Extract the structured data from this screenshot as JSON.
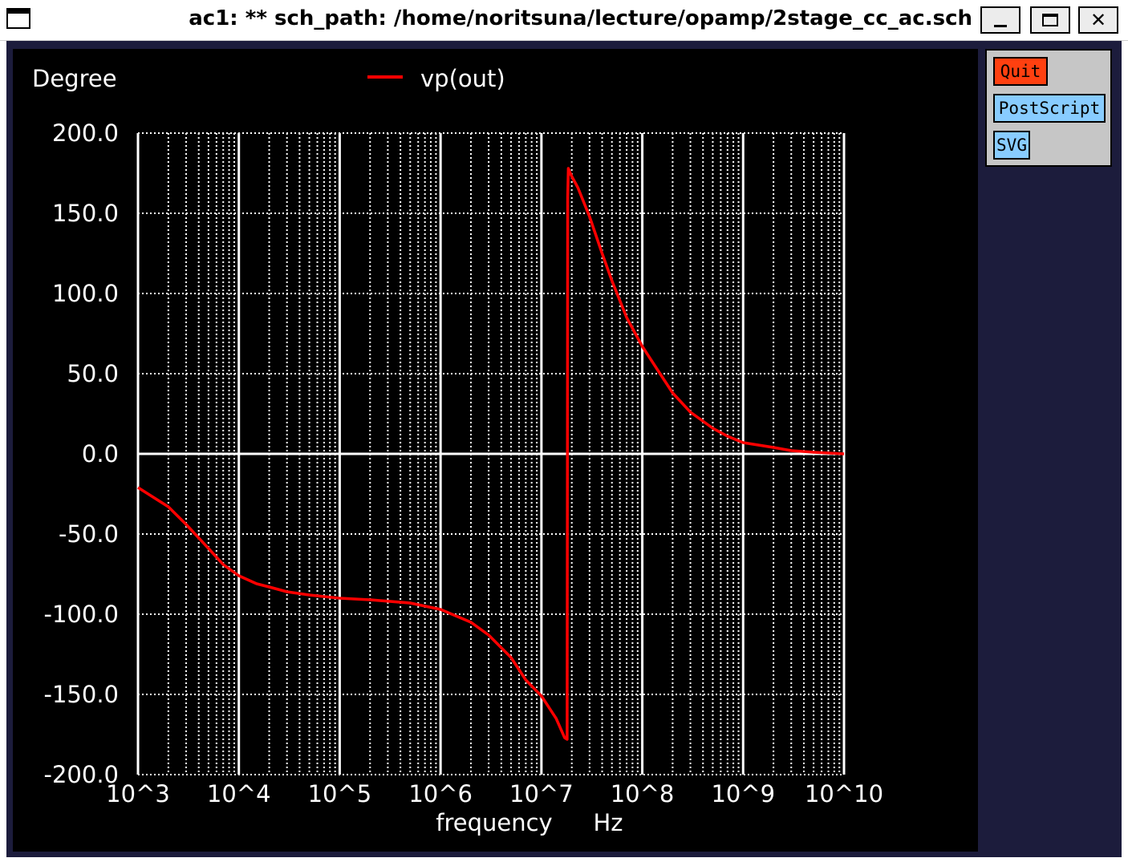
{
  "window": {
    "title": "ac1: ** sch_path: /home/noritsuna/lecture/opamp/2stage_cc_ac.sch",
    "minimize_glyph": "_",
    "maximize_glyph": "□",
    "close_glyph": "✕"
  },
  "panel": {
    "quit_label": "Quit",
    "postscript_label": "PostScript",
    "svg_label": "SVG"
  },
  "colors": {
    "plot_background": "#000000",
    "grid": "#ffffff",
    "trace": "#ff0000",
    "frame": "#1c1c3c",
    "quit_button": "#ff4010",
    "export_button": "#88ccff"
  },
  "chart_data": {
    "type": "line",
    "ylabel": "Degree",
    "xlabel": "frequency",
    "xunit": "Hz",
    "x_scale": "log",
    "xlim": [
      1000,
      10000000000
    ],
    "ylim": [
      -200,
      200
    ],
    "x_tick_labels": [
      "10^3",
      "10^4",
      "10^5",
      "10^6",
      "10^7",
      "10^8",
      "10^9",
      "10^10"
    ],
    "y_tick_labels": [
      "200.0",
      "150.0",
      "100.0",
      "50.0",
      "0.0",
      "-50.0",
      "-100.0",
      "-150.0",
      "-200.0"
    ],
    "grid": true,
    "legend_position": "top-center",
    "series": [
      {
        "name": "vp(out)",
        "color": "#ff0000",
        "x": [
          1000,
          2000,
          3000,
          5000,
          7000,
          10000,
          15000,
          20000,
          30000,
          50000,
          70000,
          100000,
          200000,
          500000,
          1000000,
          2000000,
          3000000,
          5000000,
          7000000,
          10000000,
          14000000,
          17000000,
          18000000,
          18200000,
          18500000,
          19000000,
          20000000,
          23000000,
          30000000,
          40000000,
          50000000,
          70000000,
          100000000,
          150000000,
          200000000,
          300000000,
          500000000,
          700000000,
          1000000000,
          2000000000,
          3000000000,
          5000000000,
          10000000000
        ],
        "y": [
          -21,
          -33,
          -44,
          -59,
          -69,
          -76,
          -81,
          -83,
          -86,
          -88,
          -89,
          -90,
          -91,
          -93,
          -97,
          -105,
          -113,
          -127,
          -141,
          -151,
          -165,
          -177,
          -178,
          160,
          178,
          176,
          173,
          166,
          148,
          125,
          108,
          85,
          67,
          50,
          38,
          26,
          16,
          11,
          7,
          4,
          2,
          1,
          0
        ]
      }
    ]
  }
}
